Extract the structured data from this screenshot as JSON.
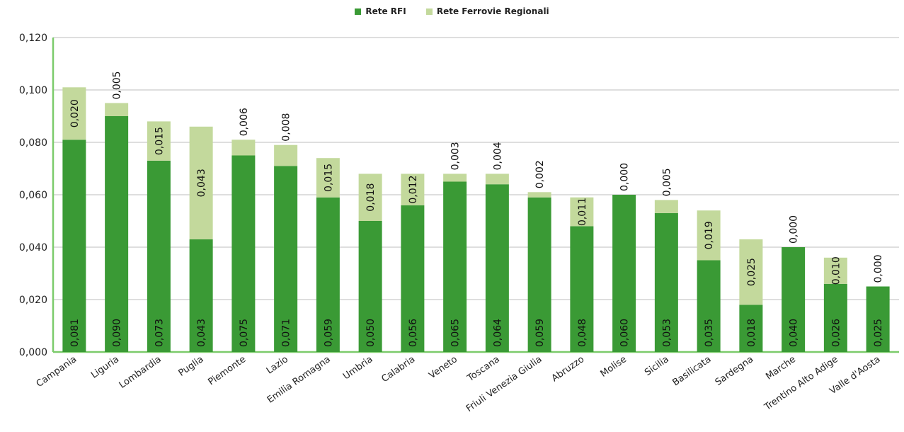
{
  "chart_data": {
    "type": "bar",
    "stacked": true,
    "legend_position": "top",
    "grid": true,
    "ylim": [
      0,
      0.12
    ],
    "yticks": [
      "0,000",
      "0,020",
      "0,040",
      "0,060",
      "0,080",
      "0,100",
      "0,120"
    ],
    "categories": [
      "Campania",
      "Liguria",
      "Lombardia",
      "Puglia",
      "Piemonte",
      "Lazio",
      "Emilia Romagna",
      "Umbria",
      "Calabria",
      "Veneto",
      "Toscana",
      "Friuli Venezia Giulia",
      "Abruzzo",
      "Molise",
      "Sicilia",
      "Basilicata",
      "Sardegna",
      "Marche",
      "Trentino Alto Adige",
      "Valle d'Aosta"
    ],
    "series": [
      {
        "name": "Rete RFI",
        "color": "#3a9a35",
        "values": [
          0.081,
          0.09,
          0.073,
          0.043,
          0.075,
          0.071,
          0.059,
          0.05,
          0.056,
          0.065,
          0.064,
          0.059,
          0.048,
          0.06,
          0.053,
          0.035,
          0.018,
          0.04,
          0.026,
          0.025
        ],
        "labels": [
          "0,081",
          "0,090",
          "0,073",
          "0,043",
          "0,075",
          "0,071",
          "0,059",
          "0,050",
          "0,056",
          "0,065",
          "0,064",
          "0,059",
          "0,048",
          "0,060",
          "0,053",
          "0,035",
          "0,018",
          "0,040",
          "0,026",
          "0,025"
        ]
      },
      {
        "name": "Rete Ferrovie Regionali",
        "color": "#c3d99c",
        "values": [
          0.02,
          0.005,
          0.015,
          0.043,
          0.006,
          0.008,
          0.015,
          0.018,
          0.012,
          0.003,
          0.004,
          0.002,
          0.011,
          0.0,
          0.005,
          0.019,
          0.025,
          0.0,
          0.01,
          0.0
        ],
        "labels": [
          "0,020",
          "0,005",
          "0,015",
          "0,043",
          "0,006",
          "0,008",
          "0,015",
          "0,018",
          "0,012",
          "0,003",
          "0,004",
          "0,002",
          "0,011",
          "0,000",
          "0,005",
          "0,019",
          "0,025",
          "0,000",
          "0,010",
          "0,000"
        ]
      }
    ]
  }
}
